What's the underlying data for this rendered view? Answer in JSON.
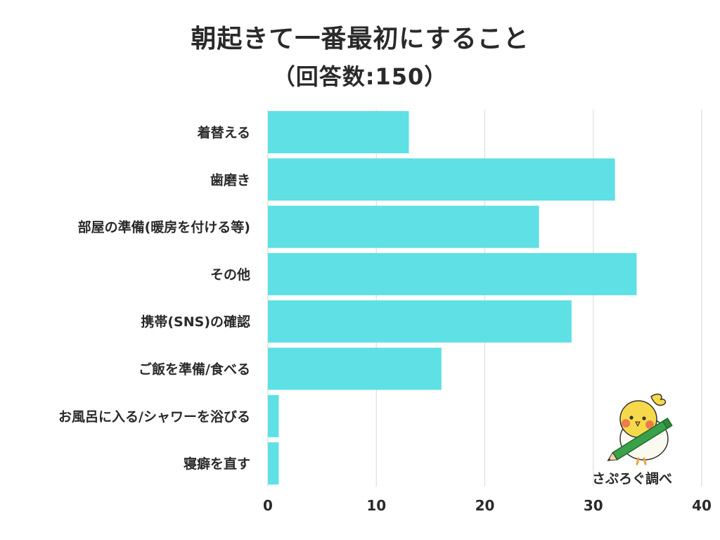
{
  "header": {
    "title": "朝起きて一番最初にすること",
    "subtitle": "（回答数:150）"
  },
  "credit": {
    "text": "さぷろぐ調べ"
  },
  "colors": {
    "bar": "#5ee0e5",
    "grid": "#dddddd",
    "text": "#2a2a2a"
  },
  "chart_data": {
    "type": "bar",
    "orientation": "horizontal",
    "title": "朝起きて一番最初にすること",
    "subtitle": "（回答数:150）",
    "categories": [
      "着替える",
      "歯磨き",
      "部屋の準備(暖房を付ける等)",
      "その他",
      "携帯(SNS)の確認",
      "ご飯を準備/食べる",
      "お風呂に入る/シャワーを浴びる",
      "寝癖を直す"
    ],
    "values": [
      13,
      32,
      25,
      34,
      28,
      16,
      1,
      1
    ],
    "xlim": [
      0,
      40
    ],
    "xticks": [
      0,
      10,
      20,
      30,
      40
    ],
    "grid": true,
    "legend": "none"
  }
}
